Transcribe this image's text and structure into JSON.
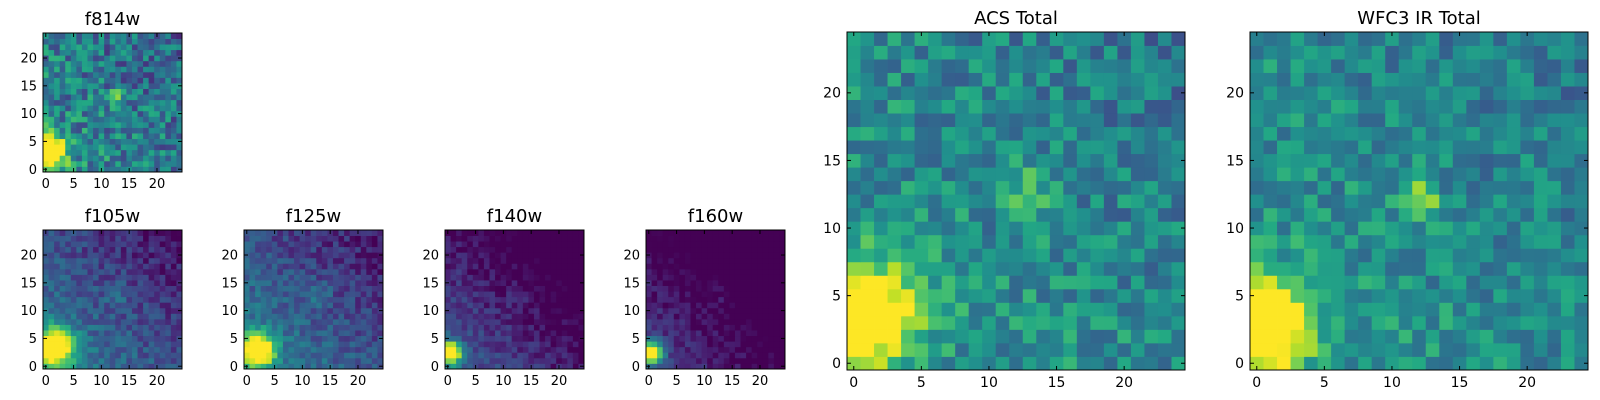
{
  "chart_data": [
    {
      "type": "heatmap",
      "title": "f814w",
      "colormap": "viridis",
      "grid_size": [
        25,
        25
      ],
      "xticks": [
        0,
        5,
        10,
        15,
        20
      ],
      "yticks": [
        0,
        5,
        10,
        15,
        20
      ],
      "bright_spot": {
        "x": 0.5,
        "y": 3,
        "strength": 1.0,
        "width": 3.0
      },
      "source": {
        "x": 13,
        "y": 13,
        "strength": 0.3,
        "width": 1.6
      },
      "gradient": 0.18,
      "noise": 0.45,
      "baseline": 0.5,
      "seed": 11
    },
    {
      "type": "heatmap",
      "title": "f105w",
      "colormap": "viridis",
      "grid_size": [
        25,
        25
      ],
      "xticks": [
        0,
        5,
        10,
        15,
        20
      ],
      "yticks": [
        0,
        5,
        10,
        15,
        20
      ],
      "bright_spot": {
        "x": 1.5,
        "y": 3.5,
        "strength": 0.9,
        "width": 3.5
      },
      "source": {
        "x": 13,
        "y": 13,
        "strength": 0.15,
        "width": 2.0
      },
      "gradient": 0.42,
      "noise": 0.22,
      "baseline": 0.45,
      "seed": 23
    },
    {
      "type": "heatmap",
      "title": "f125w",
      "colormap": "viridis",
      "grid_size": [
        25,
        25
      ],
      "xticks": [
        0,
        5,
        10,
        15,
        20
      ],
      "yticks": [
        0,
        5,
        10,
        15,
        20
      ],
      "bright_spot": {
        "x": 2.0,
        "y": 3.0,
        "strength": 1.0,
        "width": 3.0
      },
      "source": {
        "x": 13,
        "y": 13,
        "strength": 0.15,
        "width": 2.0
      },
      "gradient": 0.4,
      "noise": 0.22,
      "baseline": 0.45,
      "seed": 37
    },
    {
      "type": "heatmap",
      "title": "f140w",
      "colormap": "viridis",
      "grid_size": [
        25,
        25
      ],
      "xticks": [
        0,
        5,
        10,
        15,
        20
      ],
      "yticks": [
        0,
        5,
        10,
        15,
        20
      ],
      "bright_spot": {
        "x": 0.5,
        "y": 2.5,
        "strength": 1.0,
        "width": 2.0
      },
      "source": {
        "x": 13,
        "y": 13,
        "strength": 0.1,
        "width": 2.0
      },
      "gradient": 0.5,
      "noise": 0.18,
      "baseline": 0.3,
      "seed": 41
    },
    {
      "type": "heatmap",
      "title": "f160w",
      "colormap": "viridis",
      "grid_size": [
        25,
        25
      ],
      "xticks": [
        0,
        5,
        10,
        15,
        20
      ],
      "yticks": [
        0,
        5,
        10,
        15,
        20
      ],
      "bright_spot": {
        "x": 0.5,
        "y": 2.5,
        "strength": 1.0,
        "width": 2.0
      },
      "source": {
        "x": 13,
        "y": 13,
        "strength": 0.1,
        "width": 2.0
      },
      "gradient": 0.5,
      "noise": 0.16,
      "baseline": 0.22,
      "seed": 53
    },
    {
      "type": "heatmap",
      "title": "ACS Total",
      "colormap": "viridis",
      "grid_size": [
        25,
        25
      ],
      "xticks": [
        0,
        5,
        10,
        15,
        20
      ],
      "yticks": [
        0,
        5,
        10,
        15,
        20
      ],
      "bright_spot": {
        "x": 0.5,
        "y": 3.5,
        "strength": 1.0,
        "width": 3.5
      },
      "source": {
        "x": 13,
        "y": 13,
        "strength": 0.25,
        "width": 1.8
      },
      "gradient": 0.15,
      "noise": 0.35,
      "baseline": 0.55,
      "seed": 67
    },
    {
      "type": "heatmap",
      "title": "WFC3 IR Total",
      "colormap": "viridis",
      "grid_size": [
        25,
        25
      ],
      "xticks": [
        0,
        5,
        10,
        15,
        20
      ],
      "yticks": [
        0,
        5,
        10,
        15,
        20
      ],
      "bright_spot": {
        "x": 0.5,
        "y": 3.0,
        "strength": 1.0,
        "width": 3.2
      },
      "source": {
        "x": 12,
        "y": 12,
        "strength": 0.35,
        "width": 1.5
      },
      "gradient": 0.15,
      "noise": 0.32,
      "baseline": 0.55,
      "seed": 79
    }
  ]
}
